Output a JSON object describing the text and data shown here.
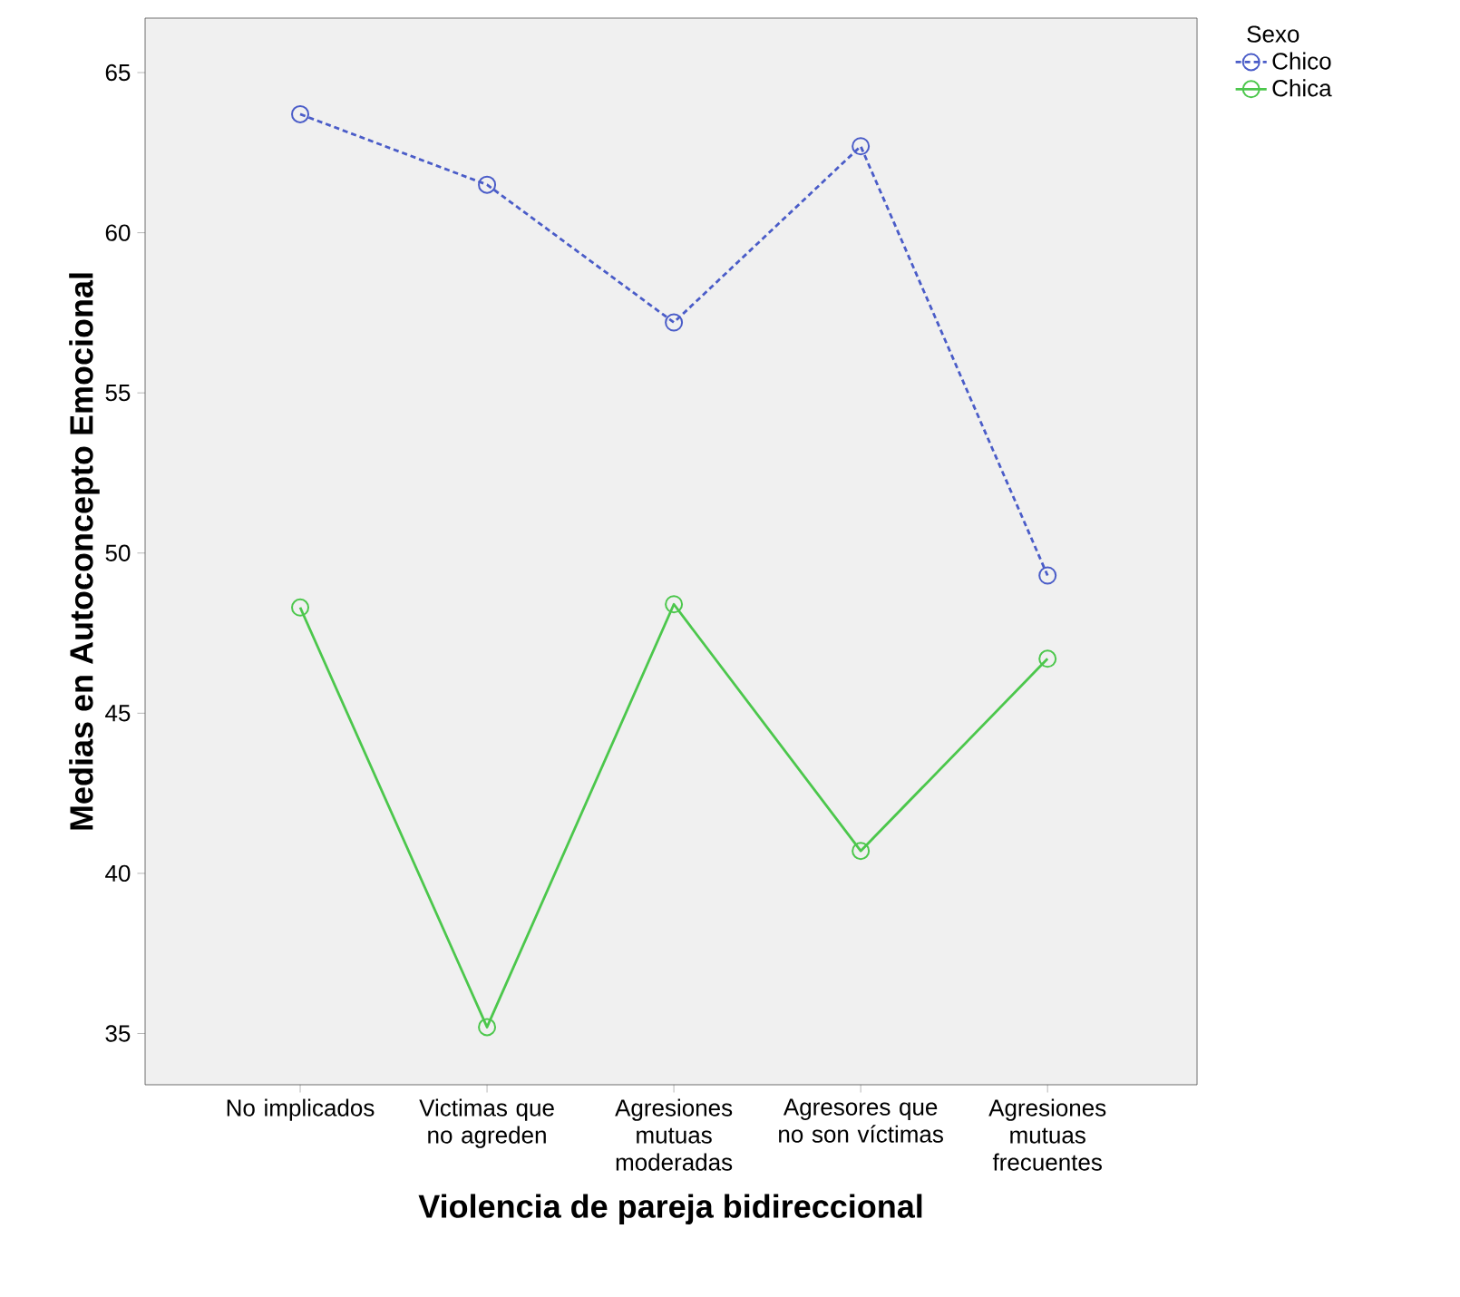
{
  "chart_data": {
    "type": "line",
    "xlabel": "Violencia de pareja bidireccional",
    "ylabel": "Medias en Autoconcepto Emocional",
    "legend_title": "Sexo",
    "categories": [
      "No implicados",
      "Victimas que no agreden",
      "Agresiones mutuas moderadas",
      "Agresores que no son víctimas",
      "Agresiones mutuas frecuentes"
    ],
    "series": [
      {
        "name": "Chico",
        "color": "#4a5cc8",
        "line_style": "dashed",
        "values": [
          63.7,
          61.5,
          57.2,
          62.7,
          49.3
        ]
      },
      {
        "name": "Chica",
        "color": "#4cc74c",
        "line_style": "solid",
        "values": [
          48.3,
          35.2,
          48.4,
          40.7,
          46.7
        ]
      }
    ],
    "ylim": [
      33.4,
      66.7
    ],
    "yticks": [
      35,
      40,
      45,
      50,
      55,
      60,
      65
    ],
    "marker": "circle",
    "legend": "right",
    "grid": false
  }
}
